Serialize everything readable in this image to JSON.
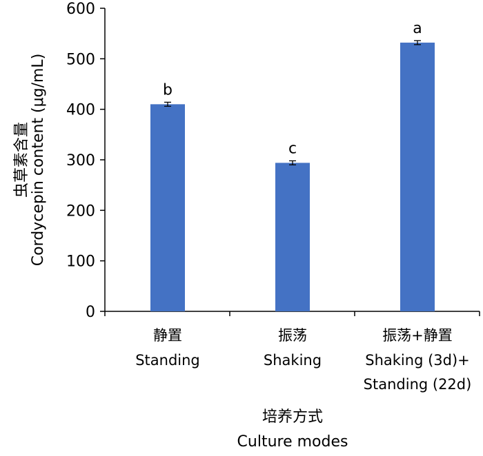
{
  "chart_data": {
    "type": "bar",
    "categories": [
      {
        "label_zh": "静置",
        "label_en": [
          "Standing"
        ]
      },
      {
        "label_zh": "振荡",
        "label_en": [
          "Shaking"
        ]
      },
      {
        "label_zh": "振荡+静置",
        "label_en": [
          "Shaking (3d)+",
          "Standing (22d)"
        ]
      }
    ],
    "values": [
      410,
      294,
      532
    ],
    "errors": [
      4,
      4,
      4
    ],
    "significance": [
      "b",
      "c",
      "a"
    ],
    "ylabel_zh": "虫草素含量",
    "ylabel_en": "Cordycepin content (μg/mL)",
    "xlabel_zh": "培养方式",
    "xlabel_en": "Culture modes",
    "ylim": [
      0,
      600
    ],
    "yticks": [
      0,
      100,
      200,
      300,
      400,
      500,
      600
    ],
    "bar_color": "#4472c4",
    "grid": false,
    "legend": "none"
  }
}
